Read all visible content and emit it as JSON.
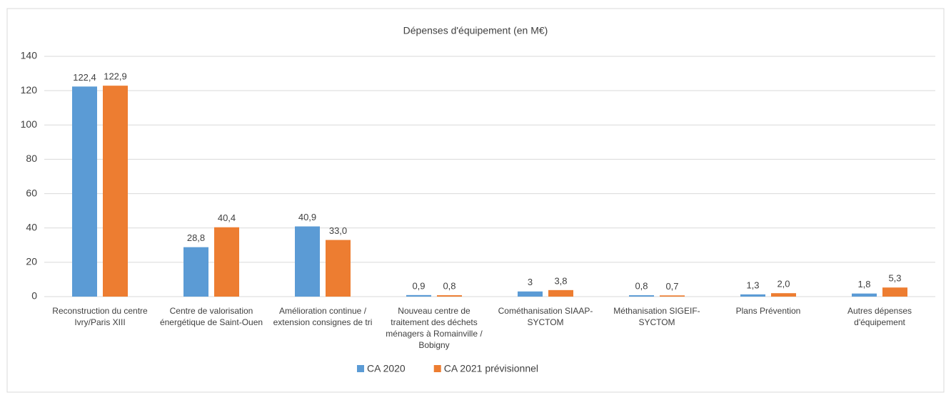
{
  "chart_data": {
    "type": "bar",
    "title": "Dépenses d'équipement (en M€)",
    "categories": [
      "Reconstruction du centre Ivry/Paris XIII",
      "Centre de valorisation énergétique de Saint-Ouen",
      "Amélioration continue / extension consignes de tri",
      "Nouveau centre de traitement des déchets ménagers à Romainville / Bobigny",
      "Cométhanisation SIAAP-SYCTOM",
      "Méthanisation SIGEIF-SYCTOM",
      "Plans Prévention",
      "Autres dépenses d'équipement"
    ],
    "series": [
      {
        "name": "CA 2020",
        "color": "#5b9bd5",
        "values": [
          122.4,
          28.8,
          40.9,
          0.9,
          3,
          0.8,
          1.3,
          1.8
        ],
        "value_labels": [
          "122,4",
          "28,8",
          "40,9",
          "0,9",
          "3",
          "0,8",
          "1,3",
          "1,8"
        ]
      },
      {
        "name": "CA 2021 prévisionnel",
        "color": "#ed7d31",
        "values": [
          122.9,
          40.4,
          33.0,
          0.8,
          3.8,
          0.7,
          2.0,
          5.3
        ],
        "value_labels": [
          "122,9",
          "40,4",
          "33,0",
          "0,8",
          "3,8",
          "0,7",
          "2,0",
          "5,3"
        ]
      }
    ],
    "ylim": [
      0,
      140
    ],
    "yticks": [
      0,
      20,
      40,
      60,
      80,
      100,
      120,
      140
    ],
    "grid": true,
    "legend": "bottom"
  }
}
